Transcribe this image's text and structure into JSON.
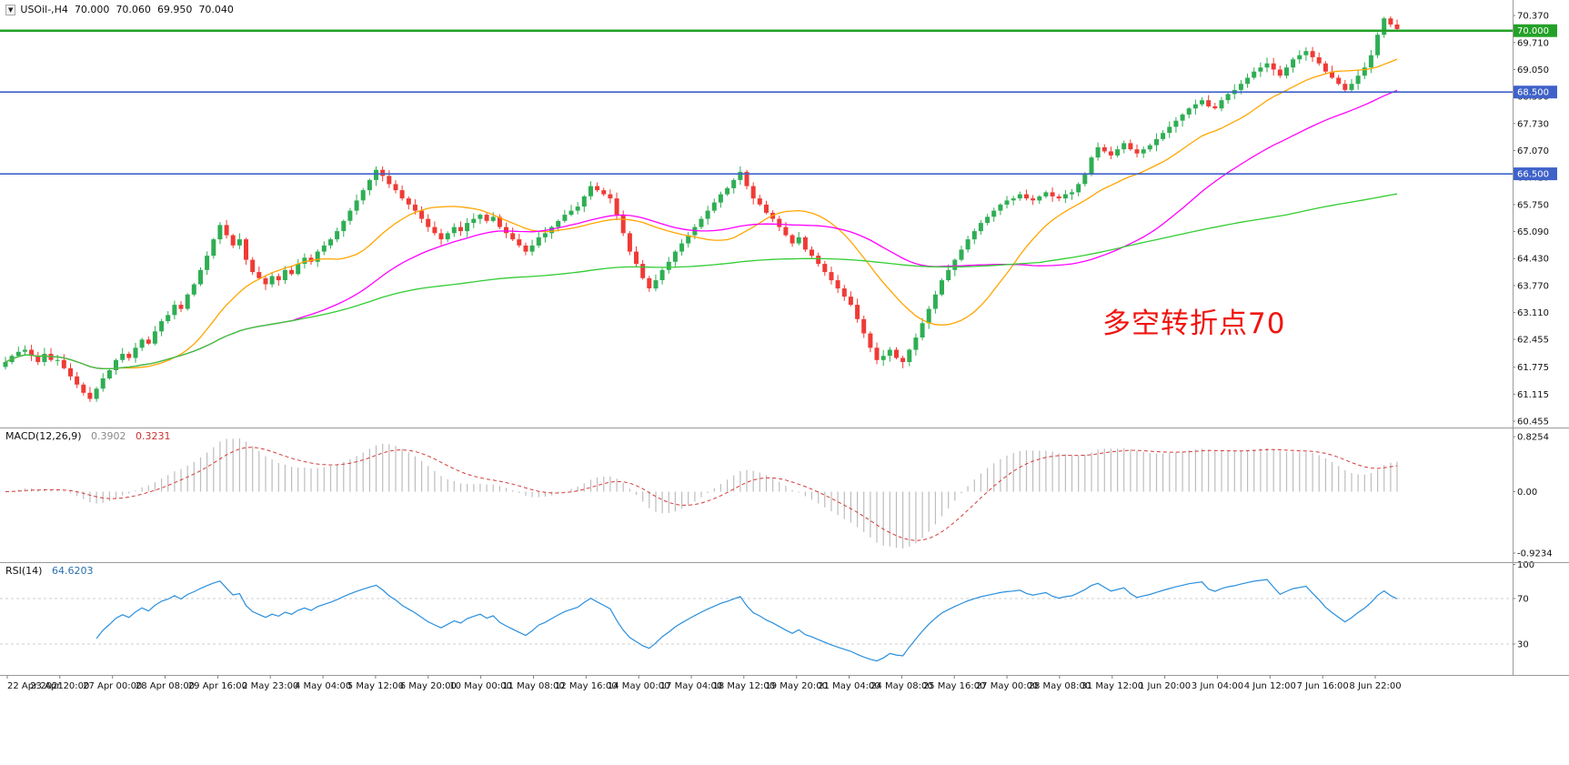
{
  "header": {
    "dropdown_icon": "▼",
    "symbol_timeframe": "USOil-,H4",
    "open": "70.000",
    "high": "70.060",
    "low": "69.950",
    "close": "70.040"
  },
  "annotation": {
    "text": "多空转折点70",
    "color": "#f01410"
  },
  "panels": {
    "macd": {
      "label": "MACD(12,26,9)",
      "main_value": "0.3902",
      "signal_value": "0.3231",
      "axis": [
        "0.8254",
        "0.00",
        "-0.9234"
      ]
    },
    "rsi": {
      "label": "RSI(14)",
      "value": "64.6203",
      "axis": [
        "100",
        "70",
        "30"
      ]
    }
  },
  "hlines": [
    {
      "price": 70.0,
      "label": "70.000",
      "color": "#23a127",
      "width": 2.5
    },
    {
      "price": 68.5,
      "label": "68.500",
      "color": "#3f62c9",
      "width": 1.6
    },
    {
      "price": 66.5,
      "label": "66.500",
      "color": "#3f62c9",
      "width": 1.6
    }
  ],
  "price_axis": {
    "labels": [
      {
        "text": "70.370",
        "value": 70.37
      },
      {
        "text": "69.710",
        "value": 69.71
      },
      {
        "text": "69.050",
        "value": 69.05
      },
      {
        "text": "68.390",
        "value": 68.39
      },
      {
        "text": "67.730",
        "value": 67.73
      },
      {
        "text": "67.070",
        "value": 67.07
      },
      {
        "text": "66.410",
        "value": 66.41
      },
      {
        "text": "65.750",
        "value": 65.75
      },
      {
        "text": "65.090",
        "value": 65.09
      },
      {
        "text": "64.430",
        "value": 64.43
      },
      {
        "text": "63.770",
        "value": 63.77
      },
      {
        "text": "63.110",
        "value": 63.11
      },
      {
        "text": "62.455",
        "value": 62.455
      },
      {
        "text": "61.775",
        "value": 61.775
      },
      {
        "text": "61.115",
        "value": 61.115
      },
      {
        "text": "60.455",
        "value": 60.455
      }
    ]
  },
  "x_axis": {
    "labels": [
      "22 Apr 2021",
      "23 Apr 20:00",
      "27 Apr 00:00",
      "28 Apr 08:00",
      "29 Apr 16:00",
      "2 May 23:00",
      "4 May 04:00",
      "5 May 12:00",
      "6 May 20:00",
      "10 May 00:00",
      "11 May 08:00",
      "12 May 16:00",
      "14 May 00:00",
      "17 May 04:00",
      "18 May 12:00",
      "19 May 20:00",
      "21 May 04:00",
      "24 May 08:00",
      "25 May 16:00",
      "27 May 00:00",
      "28 May 08:00",
      "31 May 12:00",
      "1 Jun 20:00",
      "3 Jun 04:00",
      "4 Jun 12:00",
      "7 Jun 16:00",
      "8 Jun 22:00"
    ]
  },
  "chart_data": [
    {
      "type": "candlestick",
      "name": "USOil H4",
      "ylim": [
        60.3,
        70.75
      ],
      "colors": {
        "up": "#2fae54",
        "down": "#ef3b36"
      },
      "moving_averages": [
        {
          "period": 18,
          "color": "#ffa500"
        },
        {
          "period": 45,
          "color": "#ff00ff"
        },
        {
          "period": 160,
          "color": "#33cc33"
        }
      ],
      "last_ohlc": {
        "open": 70.0,
        "high": 70.06,
        "low": 69.95,
        "close": 70.04
      },
      "closes": [
        61.9,
        62.05,
        62.15,
        62.2,
        62.05,
        61.9,
        62.1,
        61.95,
        61.95,
        61.75,
        61.55,
        61.35,
        61.15,
        61.0,
        61.25,
        61.5,
        61.7,
        61.95,
        62.1,
        62.0,
        62.25,
        62.45,
        62.35,
        62.65,
        62.9,
        63.05,
        63.3,
        63.2,
        63.55,
        63.8,
        64.15,
        64.5,
        64.9,
        65.25,
        65.0,
        64.75,
        64.9,
        64.4,
        64.1,
        63.95,
        63.8,
        64.0,
        63.9,
        64.15,
        64.05,
        64.3,
        64.45,
        64.35,
        64.6,
        64.75,
        64.9,
        65.1,
        65.35,
        65.6,
        65.85,
        66.1,
        66.35,
        66.6,
        66.45,
        66.25,
        66.1,
        65.9,
        65.75,
        65.6,
        65.4,
        65.2,
        65.05,
        64.9,
        65.05,
        65.2,
        65.1,
        65.3,
        65.4,
        65.5,
        65.35,
        65.45,
        65.2,
        65.05,
        64.9,
        64.75,
        64.6,
        64.75,
        64.95,
        65.05,
        65.2,
        65.35,
        65.5,
        65.6,
        65.7,
        65.95,
        66.2,
        66.1,
        66.0,
        65.9,
        65.5,
        65.05,
        64.6,
        64.3,
        63.95,
        63.7,
        63.9,
        64.15,
        64.35,
        64.6,
        64.8,
        65.0,
        65.2,
        65.4,
        65.6,
        65.8,
        66.0,
        66.15,
        66.35,
        66.55,
        66.2,
        65.9,
        65.75,
        65.55,
        65.4,
        65.2,
        65.0,
        64.8,
        64.95,
        64.65,
        64.5,
        64.3,
        64.1,
        63.9,
        63.7,
        63.5,
        63.3,
        62.95,
        62.6,
        62.25,
        61.95,
        62.05,
        62.2,
        62.0,
        61.9,
        62.2,
        62.5,
        62.85,
        63.2,
        63.55,
        63.9,
        64.15,
        64.4,
        64.65,
        64.9,
        65.1,
        65.3,
        65.45,
        65.6,
        65.75,
        65.85,
        65.9,
        66.0,
        65.9,
        65.85,
        65.95,
        66.05,
        65.95,
        65.9,
        66.0,
        66.05,
        66.25,
        66.5,
        66.9,
        67.15,
        67.05,
        66.95,
        67.1,
        67.25,
        67.1,
        67.0,
        67.1,
        67.2,
        67.35,
        67.5,
        67.65,
        67.8,
        67.95,
        68.1,
        68.2,
        68.3,
        68.15,
        68.1,
        68.3,
        68.45,
        68.55,
        68.7,
        68.85,
        69.0,
        69.1,
        69.2,
        69.05,
        68.9,
        69.1,
        69.3,
        69.4,
        69.5,
        69.35,
        69.2,
        69.0,
        68.85,
        68.7,
        68.55,
        68.7,
        68.9,
        69.1,
        69.4,
        69.9,
        70.3,
        70.15,
        70.04
      ]
    },
    {
      "type": "bar",
      "name": "MACD",
      "params": [
        12,
        26,
        9
      ],
      "source": "closes",
      "main_current": 0.3902,
      "signal_current": 0.3231,
      "ylim": [
        -1.06,
        0.95
      ],
      "histogram_color": "#bdbdbd",
      "signal_color": "#d43a3a"
    },
    {
      "type": "line",
      "name": "RSI",
      "period": 14,
      "source": "closes",
      "current": 64.6203,
      "ylim": [
        0,
        100
      ],
      "levels": [
        30,
        70
      ],
      "color": "#2a8fdd"
    }
  ]
}
